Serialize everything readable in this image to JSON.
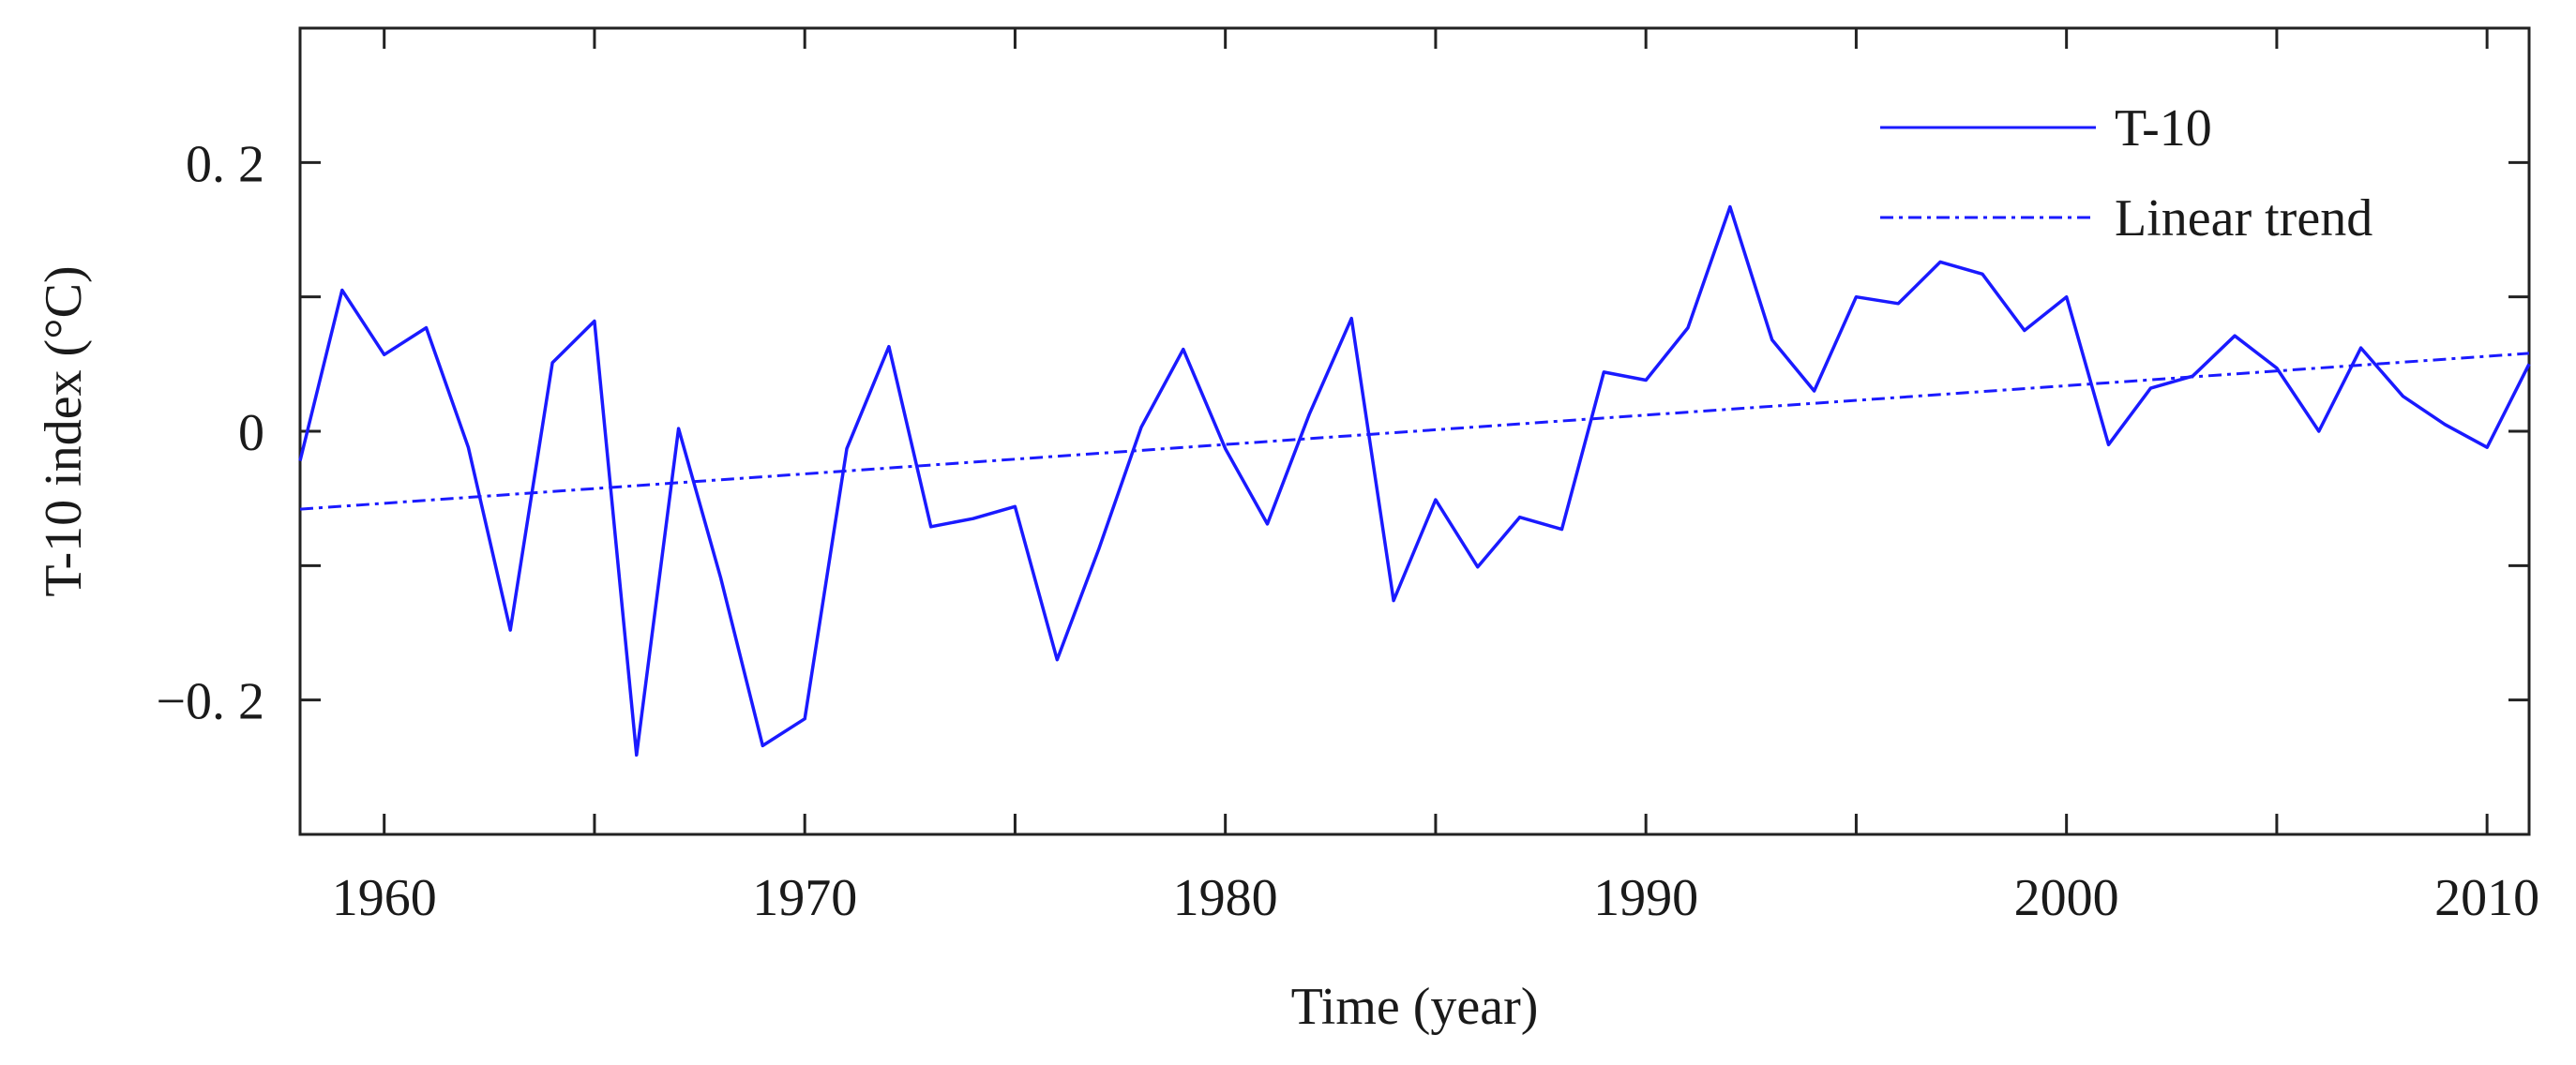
{
  "chart_data": {
    "type": "line",
    "title": "",
    "xlabel": "Time (year)",
    "ylabel": "T-10 index (°C)",
    "xlim": [
      1958,
      2011
    ],
    "ylim": [
      -0.3,
      0.3
    ],
    "x_ticks": [
      1960,
      1970,
      1980,
      1990,
      2000,
      2010
    ],
    "x_minor_step": 5,
    "y_ticks": [
      -0.2,
      0,
      0.2
    ],
    "y_tick_labels": [
      "−0. 2",
      "0",
      "0. 2"
    ],
    "y_minor_step": 0.1,
    "grid": false,
    "legend_position": "top-right",
    "series": [
      {
        "name": "T-10",
        "style": "solid",
        "color": "#1a1aff",
        "x": [
          1958,
          1959,
          1960,
          1961,
          1962,
          1963,
          1964,
          1965,
          1966,
          1967,
          1968,
          1969,
          1970,
          1971,
          1972,
          1973,
          1974,
          1975,
          1976,
          1977,
          1978,
          1979,
          1980,
          1981,
          1982,
          1983,
          1984,
          1985,
          1986,
          1987,
          1988,
          1989,
          1990,
          1991,
          1992,
          1993,
          1994,
          1995,
          1996,
          1997,
          1998,
          1999,
          2000,
          2001,
          2002,
          2003,
          2004,
          2005,
          2006,
          2007,
          2008,
          2009,
          2010,
          2011
        ],
        "y": [
          -0.022,
          0.105,
          0.057,
          0.077,
          -0.012,
          -0.148,
          0.051,
          0.082,
          -0.241,
          0.002,
          -0.109,
          -0.234,
          -0.214,
          -0.013,
          0.063,
          -0.071,
          -0.065,
          -0.056,
          -0.17,
          -0.087,
          0.003,
          0.061,
          -0.013,
          -0.069,
          0.013,
          0.084,
          -0.126,
          -0.051,
          -0.101,
          -0.064,
          -0.073,
          0.044,
          0.038,
          0.077,
          0.167,
          0.068,
          0.03,
          0.1,
          0.095,
          0.126,
          0.117,
          0.075,
          0.1,
          -0.01,
          0.032,
          0.041,
          0.071,
          0.047,
          0.0,
          0.062,
          0.026,
          0.005,
          -0.012,
          0.05
        ]
      },
      {
        "name": "Linear trend",
        "style": "dash-dot",
        "color": "#1a1aff",
        "x": [
          1958,
          2011
        ],
        "y": [
          -0.058,
          0.058
        ]
      }
    ]
  }
}
